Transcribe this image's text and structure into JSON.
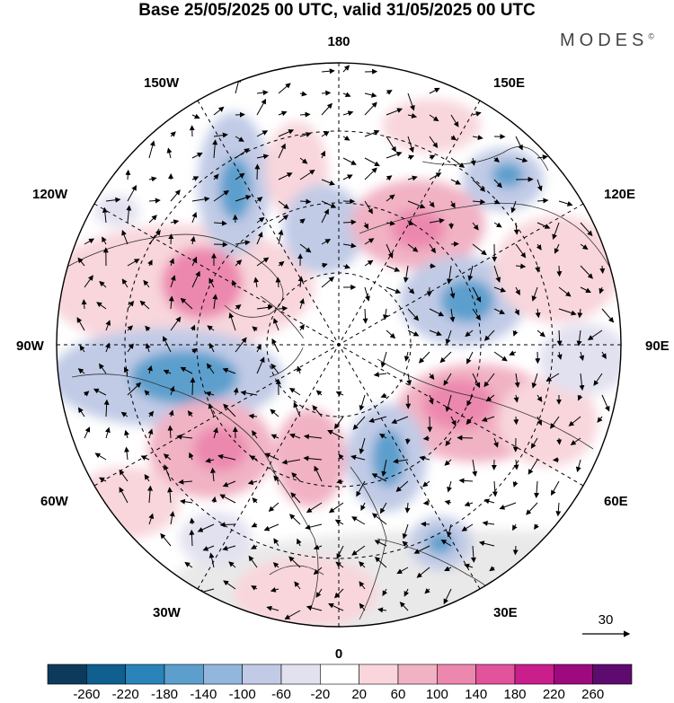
{
  "title": "Base 25/05/2025 00 UTC, valid 31/05/2025 00 UTC",
  "brand": "MODES",
  "brand_mark": "©",
  "meridian_labels": {
    "top": "180",
    "bottom": "0",
    "left": "90W",
    "right": "90E",
    "upper_left_1": "150W",
    "upper_left_2": "120W",
    "upper_right_1": "150E",
    "upper_right_2": "120E",
    "lower_left_1": "60W",
    "lower_left_2": "30W",
    "lower_right_1": "60E",
    "lower_right_2": "30E"
  },
  "reference_vector": {
    "label": "30"
  },
  "colorbar": {
    "labels": [
      "-260",
      "-220",
      "-180",
      "-140",
      "-100",
      "-60",
      "-20",
      "20",
      "60",
      "100",
      "140",
      "180",
      "220",
      "260"
    ],
    "colors": [
      "#0d3a5c",
      "#0f5f8f",
      "#2a83b9",
      "#5c9fcd",
      "#92b6dd",
      "#c1cbe6",
      "#e2e1f0",
      "#ffffff",
      "#f8d6dc",
      "#f1b2c4",
      "#ec88ae",
      "#e2539b",
      "#c91e8c",
      "#9c0a7d",
      "#5d0b6e"
    ]
  },
  "anomaly_colors": {
    "pos_light": "#f8d6dc",
    "pos_mid": "#f1b2c4",
    "pos_strong": "#ec88ae",
    "neg_light": "#e2e1f0",
    "neg_mid": "#c1cbe6",
    "neg_strong": "#92b6dd",
    "neg_deep": "#5c9fcd",
    "neutral": "#e9e9e9"
  }
}
